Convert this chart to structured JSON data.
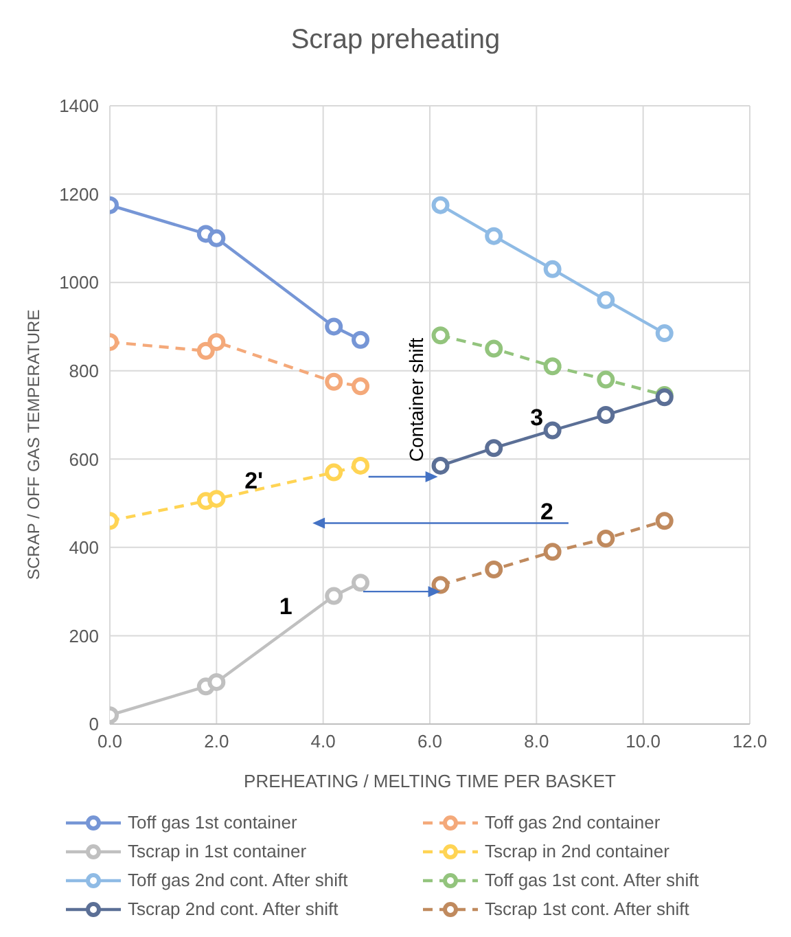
{
  "chart_data": {
    "type": "line",
    "title": "Scrap preheating",
    "xlabel": "PREHEATING / MELTING TIME PER BASKET",
    "ylabel": "SCRAP / OFF GAS TEMPERATURE",
    "xlim": [
      0,
      12
    ],
    "xticks": [
      {
        "value": 0,
        "label": "0.0"
      },
      {
        "value": 2,
        "label": "2.0"
      },
      {
        "value": 4,
        "label": "4.0"
      },
      {
        "value": 6,
        "label": "6.0"
      },
      {
        "value": 8,
        "label": "8.0"
      },
      {
        "value": 10,
        "label": "10.0"
      },
      {
        "value": 12,
        "label": "12.0"
      }
    ],
    "ylim": [
      0,
      1400
    ],
    "yticks": [
      0,
      200,
      400,
      600,
      800,
      1000,
      1200,
      1400
    ],
    "grid": true,
    "legend": "bottom",
    "marker": "circle",
    "series": [
      {
        "name": "Toff gas 1st container",
        "color": "#7696d6",
        "line_style": "solid",
        "x": [
          0,
          1.8,
          2.0,
          4.2,
          4.7
        ],
        "values": [
          1175,
          1110,
          1100,
          900,
          870
        ]
      },
      {
        "name": "Toff gas 2nd container",
        "color": "#f4a97a",
        "line_style": "dashed",
        "x": [
          0,
          1.8,
          2.0,
          4.2,
          4.7
        ],
        "values": [
          865,
          845,
          865,
          775,
          765
        ]
      },
      {
        "name": "Tscrap in 1st container",
        "color": "#c0c0c0",
        "line_style": "solid",
        "x": [
          0,
          1.8,
          2.0,
          4.2,
          4.7
        ],
        "values": [
          20,
          85,
          95,
          290,
          320
        ]
      },
      {
        "name": "Tscrap in 2nd container",
        "color": "#ffd454",
        "line_style": "dashed",
        "x": [
          0,
          1.8,
          2.0,
          4.2,
          4.7
        ],
        "values": [
          460,
          505,
          510,
          570,
          585
        ]
      },
      {
        "name": "Toff gas 2nd cont. After shift",
        "color": "#8fbbe5",
        "line_style": "solid",
        "x": [
          6.2,
          7.2,
          8.3,
          9.3,
          10.4
        ],
        "values": [
          1175,
          1105,
          1030,
          960,
          885
        ]
      },
      {
        "name": "Toff gas 1st cont. After shift",
        "color": "#93c47d",
        "line_style": "dashed",
        "x": [
          6.2,
          7.2,
          8.3,
          9.3,
          10.4
        ],
        "values": [
          880,
          850,
          810,
          780,
          745
        ]
      },
      {
        "name": "Tscrap 2nd cont. After shift",
        "color": "#5b6f96",
        "line_style": "solid",
        "x": [
          6.2,
          7.2,
          8.3,
          9.3,
          10.4
        ],
        "values": [
          585,
          625,
          665,
          700,
          740
        ]
      },
      {
        "name": "Tscrap 1st cont. After shift",
        "color": "#c08a5e",
        "line_style": "dashed",
        "x": [
          6.2,
          7.2,
          8.3,
          9.3,
          10.4
        ],
        "values": [
          315,
          350,
          390,
          420,
          460
        ]
      }
    ],
    "annotations": [
      "1",
      "2'",
      "2",
      "3",
      {
        "text": "Container shift",
        "x": 6.2,
        "y": 585
      }
    ]
  }
}
